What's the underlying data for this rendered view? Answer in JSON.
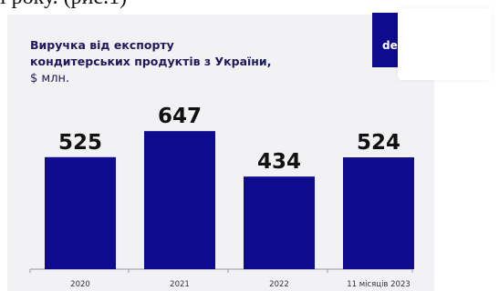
{
  "document_text": "і року. (рис.1)",
  "logo": {
    "text": "de"
  },
  "colors": {
    "bar": "#0e0b8f",
    "title": "#1d1a5b",
    "logo_bg": "#0e0b8f",
    "card_bg": "#f2f2f4"
  },
  "chart_data": {
    "type": "bar",
    "title_line1": "Виручка від експорту",
    "title_line2": "кондитерських продуктів з України,",
    "subtitle": "$ млн.",
    "categories": [
      "2020",
      "2021",
      "2022",
      "11 місяців 2023"
    ],
    "values": [
      525,
      647,
      434,
      524
    ],
    "value_labels": [
      "525",
      "647",
      "434",
      "524"
    ],
    "xlabel": "",
    "ylabel": "",
    "ylim": [
      0,
      750
    ],
    "grid": false,
    "legend": "none"
  }
}
